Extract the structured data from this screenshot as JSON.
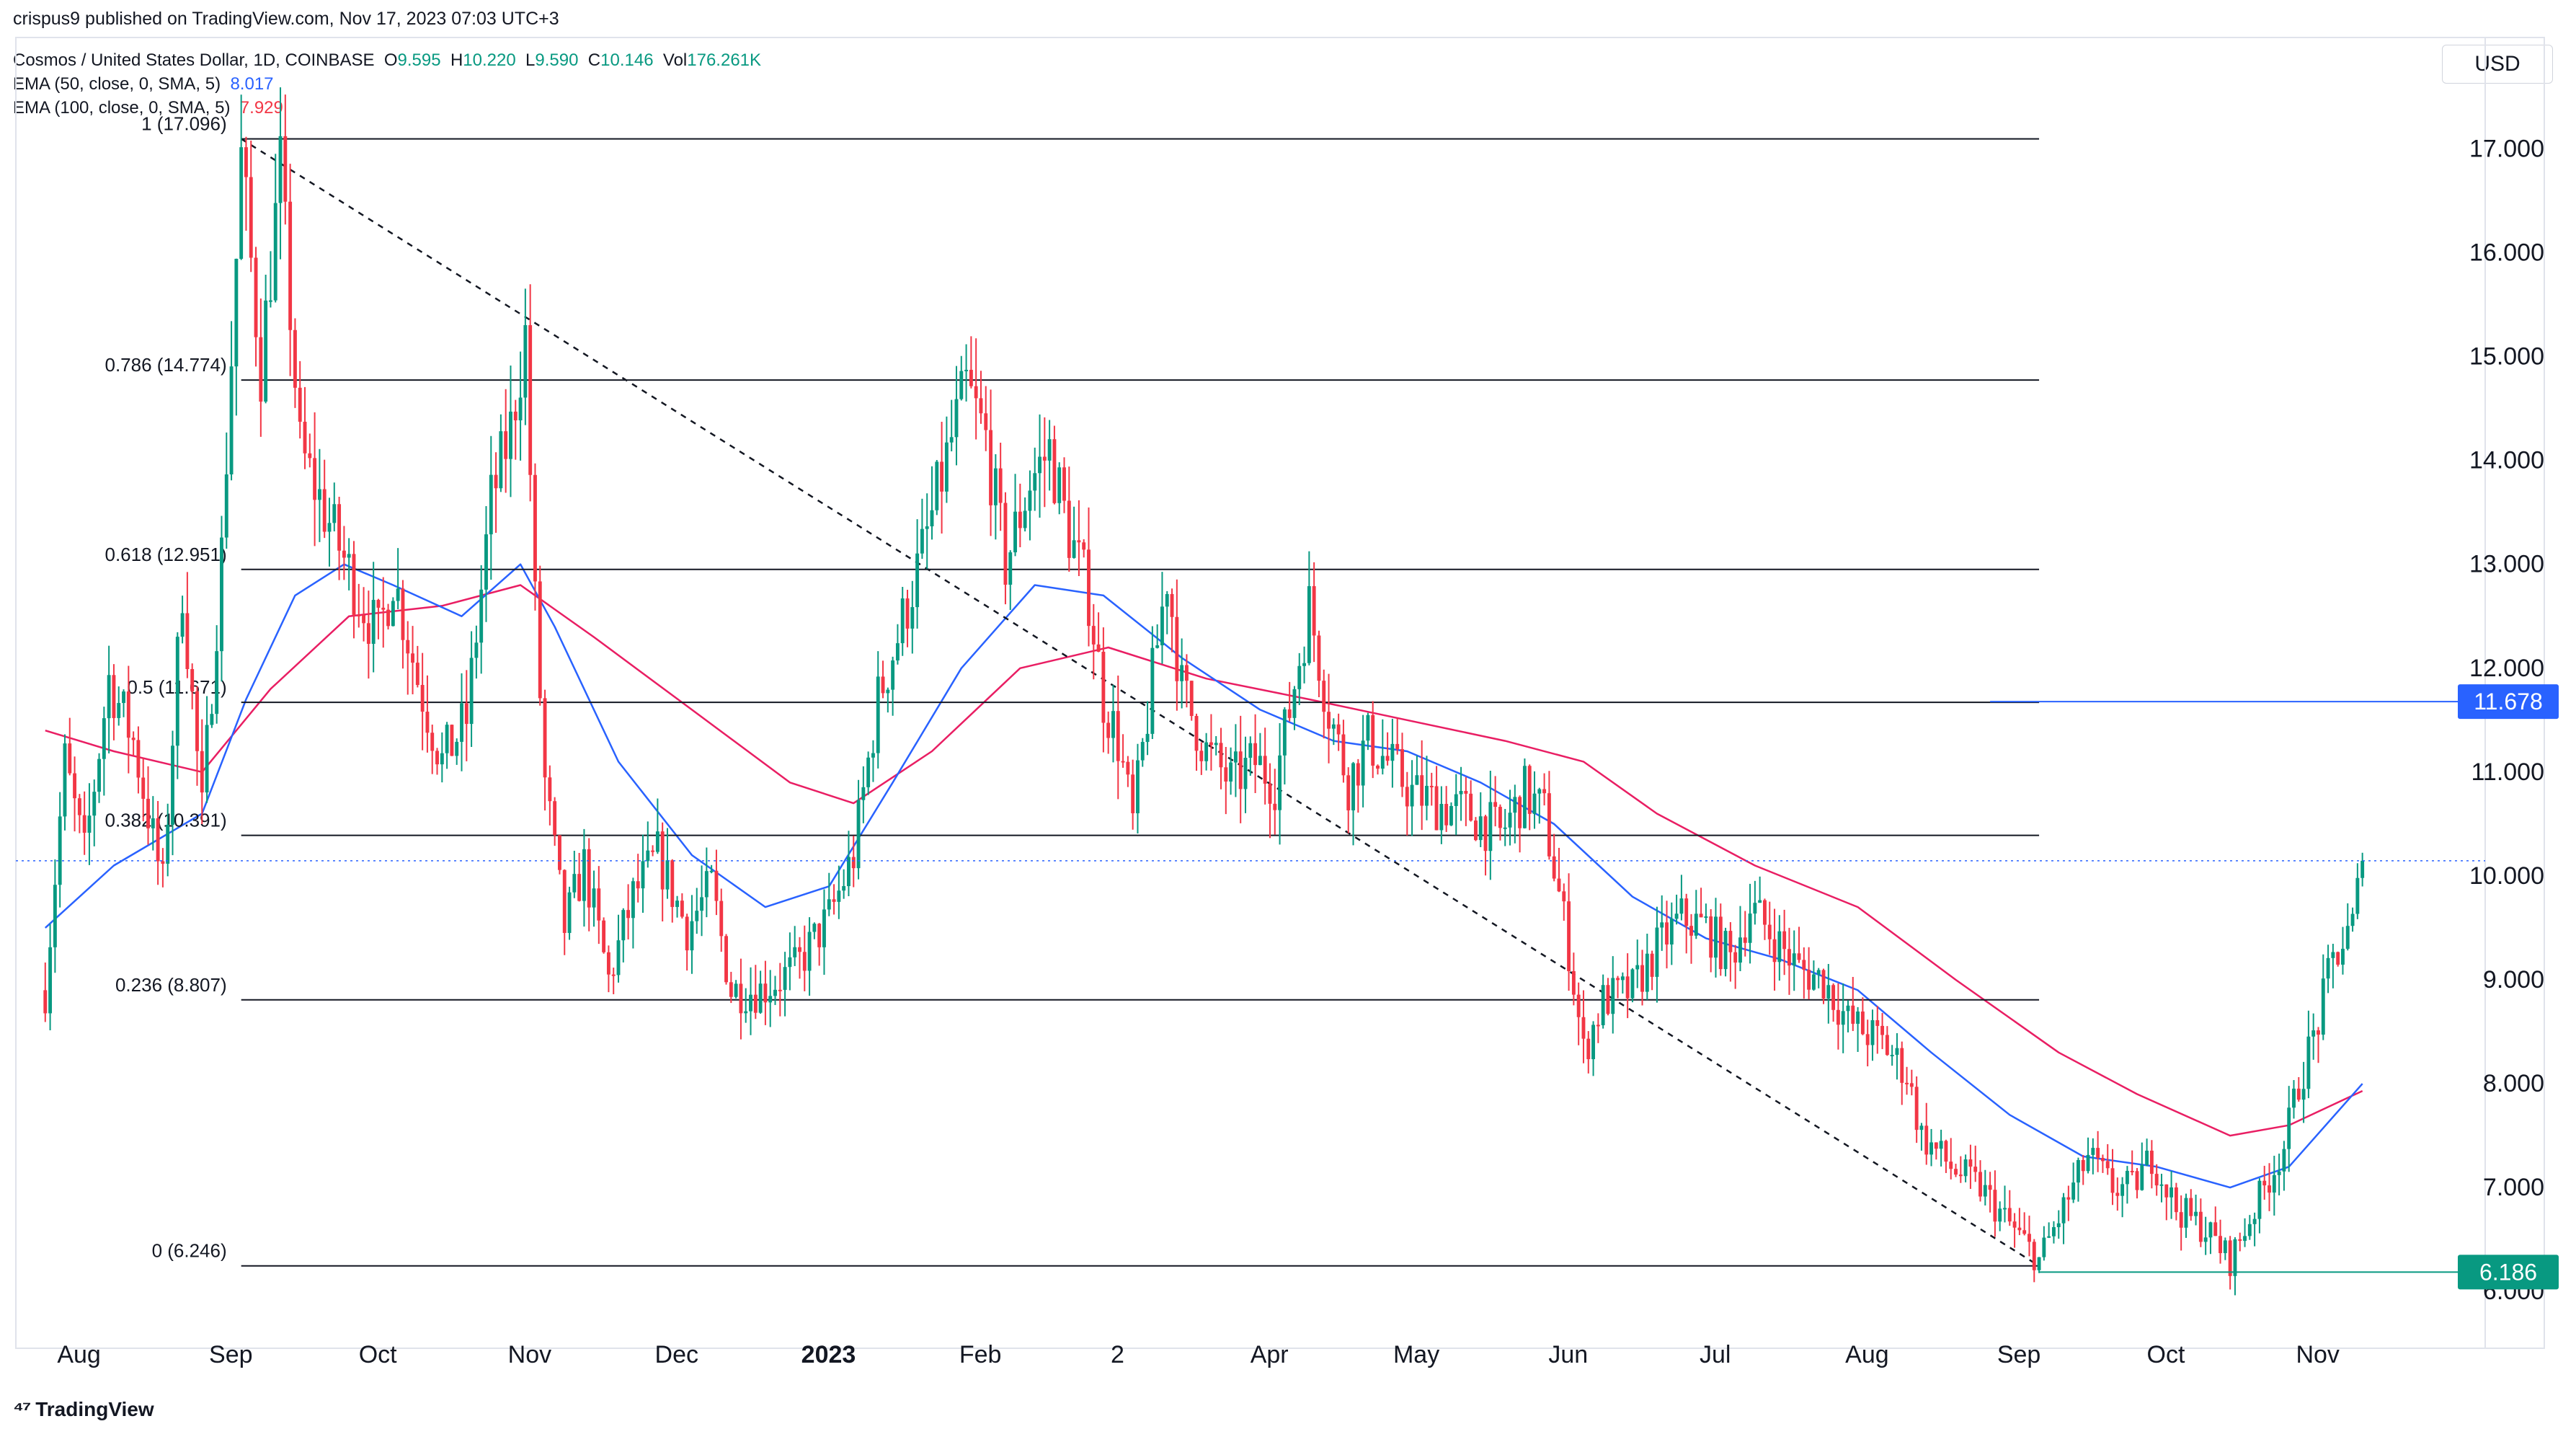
{
  "header": {
    "published": "crispus9 published on TradingView.com, Nov 17, 2023 07:03 UTC+3",
    "symbol": "Cosmos / United States Dollar, 1D, COINBASE",
    "open_label": "O",
    "open": "9.595",
    "high_label": "H",
    "high": "10.220",
    "low_label": "L",
    "low": "9.590",
    "close_label": "C",
    "close": "10.146",
    "vol_label": "Vol",
    "volume": "176.261K",
    "ema50_label": "EMA (50, close, 0, SMA, 5)",
    "ema50_value": "8.017",
    "ema100_label": "EMA (100, close, 0, SMA, 5)",
    "ema100_value": "7.929"
  },
  "currency": "USD",
  "brand": "TradingView",
  "colors": {
    "up": "#089981",
    "down": "#f23645",
    "ema50": "#2962ff",
    "ema100": "#e91e63",
    "fib": "#131722",
    "price_line": "#2962ff",
    "support": "#089981"
  },
  "chart_data": {
    "type": "candlestick",
    "title": "Cosmos / United States Dollar, 1D, COINBASE",
    "ylim": [
      5.8,
      17.6
    ],
    "y_ticks": [
      "6.000",
      "7.000",
      "8.000",
      "9.000",
      "10.000",
      "11.000",
      "12.000",
      "13.000",
      "14.000",
      "15.000",
      "16.000",
      "17.000"
    ],
    "x_ticks": [
      "Aug",
      "Sep",
      "Oct",
      "Nov",
      "Dec",
      "2023",
      "Feb",
      "2",
      "Apr",
      "May",
      "Jun",
      "Jul",
      "Aug",
      "Sep",
      "Oct",
      "Nov"
    ],
    "last_close": 10.146,
    "fib_levels": [
      {
        "label": "1 (17.096)",
        "value": 17.096
      },
      {
        "label": "0.786 (14.774)",
        "value": 14.774
      },
      {
        "label": "0.618 (12.951)",
        "value": 12.951
      },
      {
        "label": "0.5 (11.671)",
        "value": 11.671
      },
      {
        "label": "0.382 (10.391)",
        "value": 10.391
      },
      {
        "label": "0.236 (8.807)",
        "value": 8.807
      },
      {
        "label": "0 (6.246)",
        "value": 6.246
      }
    ],
    "price_markers": [
      {
        "label": "11.678",
        "value": 11.678,
        "style": "resistance"
      },
      {
        "label": "6.186",
        "value": 6.186,
        "style": "support"
      }
    ],
    "trendline": {
      "from": {
        "date": "2022-09-09",
        "value": 17.096
      },
      "to": {
        "date": "2023-09-11",
        "value": 6.246
      }
    },
    "price_path": [
      [
        "2022-07-31",
        8.9
      ],
      [
        "2022-08-04",
        11.1
      ],
      [
        "2022-08-08",
        10.2
      ],
      [
        "2022-08-13",
        11.9
      ],
      [
        "2022-08-18",
        11.3
      ],
      [
        "2022-08-24",
        9.9
      ],
      [
        "2022-08-28",
        12.8
      ],
      [
        "2022-09-01",
        10.6
      ],
      [
        "2022-09-05",
        13.1
      ],
      [
        "2022-09-09",
        16.9
      ],
      [
        "2022-09-13",
        14.9
      ],
      [
        "2022-09-17",
        16.8
      ],
      [
        "2022-09-21",
        14.1
      ],
      [
        "2022-09-27",
        13.4
      ],
      [
        "2022-10-03",
        12.7
      ],
      [
        "2022-10-07",
        12.3
      ],
      [
        "2022-10-10",
        12.9
      ],
      [
        "2022-10-15",
        11.9
      ],
      [
        "2022-10-20",
        11.1
      ],
      [
        "2022-10-25",
        11.5
      ],
      [
        "2022-10-30",
        13.6
      ],
      [
        "2022-11-03",
        14.3
      ],
      [
        "2022-11-06",
        15.2
      ],
      [
        "2022-11-08",
        12.6
      ],
      [
        "2022-11-10",
        10.9
      ],
      [
        "2022-11-14",
        9.5
      ],
      [
        "2022-11-18",
        10.1
      ],
      [
        "2022-11-23",
        9.0
      ],
      [
        "2022-11-28",
        9.8
      ],
      [
        "2022-12-03",
        10.2
      ],
      [
        "2022-12-09",
        9.5
      ],
      [
        "2022-12-14",
        9.9
      ],
      [
        "2022-12-18",
        8.9
      ],
      [
        "2022-12-24",
        8.9
      ],
      [
        "2022-12-31",
        9.1
      ],
      [
        "2023-01-07",
        9.6
      ],
      [
        "2023-01-12",
        10.2
      ],
      [
        "2023-01-17",
        11.7
      ],
      [
        "2023-01-21",
        12.3
      ],
      [
        "2023-01-26",
        13.1
      ],
      [
        "2023-02-01",
        14.2
      ],
      [
        "2023-02-04",
        14.7
      ],
      [
        "2023-02-08",
        14.2
      ],
      [
        "2023-02-12",
        13.0
      ],
      [
        "2023-02-17",
        13.8
      ],
      [
        "2023-02-21",
        14.1
      ],
      [
        "2023-02-25",
        13.3
      ],
      [
        "2023-03-01",
        12.7
      ],
      [
        "2023-03-04",
        11.7
      ],
      [
        "2023-03-07",
        11.3
      ],
      [
        "2023-03-10",
        10.5
      ],
      [
        "2023-03-14",
        11.9
      ],
      [
        "2023-03-17",
        12.9
      ],
      [
        "2023-03-20",
        11.8
      ],
      [
        "2023-03-25",
        11.2
      ],
      [
        "2023-03-30",
        10.9
      ],
      [
        "2023-04-04",
        11.1
      ],
      [
        "2023-04-08",
        10.9
      ],
      [
        "2023-04-11",
        11.6
      ],
      [
        "2023-04-15",
        12.6
      ],
      [
        "2023-04-19",
        11.6
      ],
      [
        "2023-04-23",
        10.9
      ],
      [
        "2023-04-27",
        11.3
      ],
      [
        "2023-05-01",
        11.1
      ],
      [
        "2023-05-06",
        10.8
      ],
      [
        "2023-05-11",
        10.7
      ],
      [
        "2023-05-18",
        10.6
      ],
      [
        "2023-05-24",
        10.4
      ],
      [
        "2023-05-29",
        10.8
      ],
      [
        "2023-06-02",
        10.6
      ],
      [
        "2023-06-07",
        9.3
      ],
      [
        "2023-06-10",
        8.3
      ],
      [
        "2023-06-14",
        8.8
      ],
      [
        "2023-06-20",
        8.9
      ],
      [
        "2023-06-25",
        9.3
      ],
      [
        "2023-06-30",
        9.6
      ],
      [
        "2023-07-05",
        9.5
      ],
      [
        "2023-07-10",
        9.2
      ],
      [
        "2023-07-14",
        9.7
      ],
      [
        "2023-07-19",
        9.4
      ],
      [
        "2023-07-24",
        9.1
      ],
      [
        "2023-07-29",
        9.0
      ],
      [
        "2023-08-03",
        8.6
      ],
      [
        "2023-08-10",
        8.4
      ],
      [
        "2023-08-15",
        8.1
      ],
      [
        "2023-08-18",
        7.5
      ],
      [
        "2023-08-24",
        7.2
      ],
      [
        "2023-08-30",
        7.0
      ],
      [
        "2023-09-04",
        6.7
      ],
      [
        "2023-09-11",
        6.3
      ],
      [
        "2023-09-16",
        6.8
      ],
      [
        "2023-09-21",
        7.3
      ],
      [
        "2023-09-26",
        7.0
      ],
      [
        "2023-09-30",
        7.0
      ],
      [
        "2023-10-04",
        7.3
      ],
      [
        "2023-10-09",
        6.8
      ],
      [
        "2023-10-15",
        6.6
      ],
      [
        "2023-10-20",
        6.3
      ],
      [
        "2023-10-26",
        6.9
      ],
      [
        "2023-10-31",
        7.4
      ],
      [
        "2023-11-03",
        8.0
      ],
      [
        "2023-11-07",
        8.6
      ],
      [
        "2023-11-10",
        9.2
      ],
      [
        "2023-11-14",
        9.5
      ],
      [
        "2023-11-16",
        10.15
      ]
    ],
    "ema50_path": [
      [
        "2022-07-31",
        9.5
      ],
      [
        "2022-08-14",
        10.1
      ],
      [
        "2022-09-01",
        10.6
      ],
      [
        "2022-09-10",
        11.7
      ],
      [
        "2022-09-20",
        12.7
      ],
      [
        "2022-09-30",
        13.0
      ],
      [
        "2022-10-10",
        12.8
      ],
      [
        "2022-10-24",
        12.5
      ],
      [
        "2022-11-05",
        13.0
      ],
      [
        "2022-11-12",
        12.4
      ],
      [
        "2022-11-25",
        11.1
      ],
      [
        "2022-12-10",
        10.2
      ],
      [
        "2022-12-25",
        9.7
      ],
      [
        "2023-01-07",
        9.9
      ],
      [
        "2023-01-20",
        10.9
      ],
      [
        "2023-02-03",
        12.0
      ],
      [
        "2023-02-18",
        12.8
      ],
      [
        "2023-03-04",
        12.7
      ],
      [
        "2023-03-20",
        12.1
      ],
      [
        "2023-04-05",
        11.6
      ],
      [
        "2023-04-20",
        11.3
      ],
      [
        "2023-05-05",
        11.2
      ],
      [
        "2023-05-20",
        10.9
      ],
      [
        "2023-06-04",
        10.5
      ],
      [
        "2023-06-20",
        9.8
      ],
      [
        "2023-07-05",
        9.4
      ],
      [
        "2023-07-20",
        9.2
      ],
      [
        "2023-08-05",
        8.9
      ],
      [
        "2023-08-20",
        8.3
      ],
      [
        "2023-09-05",
        7.7
      ],
      [
        "2023-09-20",
        7.3
      ],
      [
        "2023-10-05",
        7.2
      ],
      [
        "2023-10-20",
        7.0
      ],
      [
        "2023-11-01",
        7.2
      ],
      [
        "2023-11-16",
        8.0
      ]
    ],
    "ema100_path": [
      [
        "2022-07-31",
        11.4
      ],
      [
        "2022-08-14",
        11.2
      ],
      [
        "2022-09-01",
        11.0
      ],
      [
        "2022-09-15",
        11.8
      ],
      [
        "2022-10-01",
        12.5
      ],
      [
        "2022-10-20",
        12.6
      ],
      [
        "2022-11-05",
        12.8
      ],
      [
        "2022-11-20",
        12.3
      ],
      [
        "2022-12-10",
        11.6
      ],
      [
        "2022-12-30",
        10.9
      ],
      [
        "2023-01-12",
        10.7
      ],
      [
        "2023-01-28",
        11.2
      ],
      [
        "2023-02-15",
        12.0
      ],
      [
        "2023-03-05",
        12.2
      ],
      [
        "2023-03-25",
        11.9
      ],
      [
        "2023-04-15",
        11.7
      ],
      [
        "2023-05-05",
        11.5
      ],
      [
        "2023-05-25",
        11.3
      ],
      [
        "2023-06-10",
        11.1
      ],
      [
        "2023-06-25",
        10.6
      ],
      [
        "2023-07-15",
        10.1
      ],
      [
        "2023-08-05",
        9.7
      ],
      [
        "2023-08-25",
        9.0
      ],
      [
        "2023-09-15",
        8.3
      ],
      [
        "2023-10-01",
        7.9
      ],
      [
        "2023-10-20",
        7.5
      ],
      [
        "2023-11-01",
        7.6
      ],
      [
        "2023-11-16",
        7.93
      ]
    ]
  }
}
